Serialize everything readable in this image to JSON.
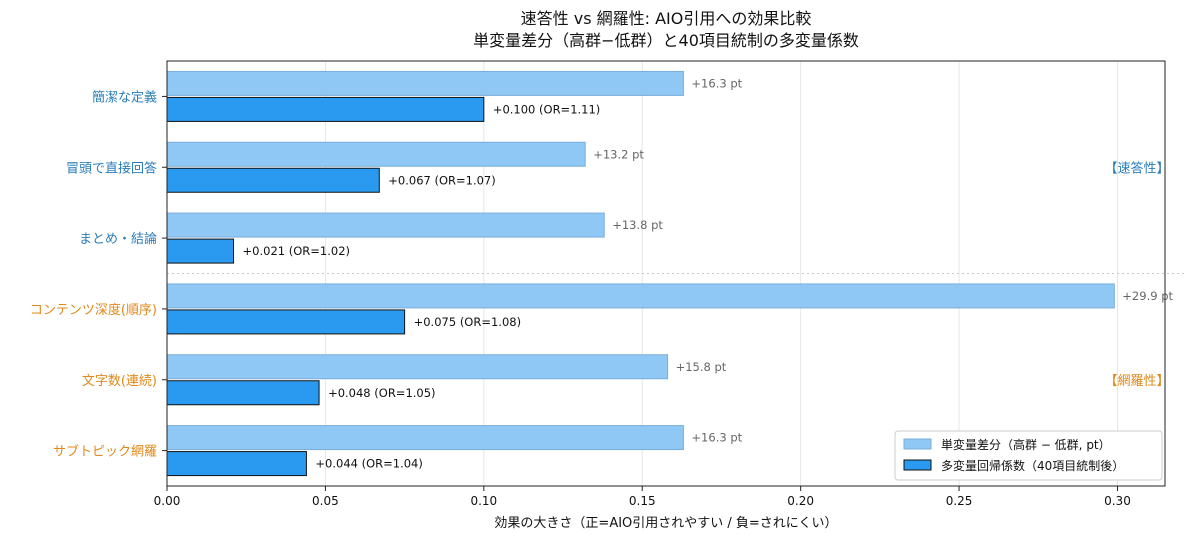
{
  "colors": {
    "speed": "#2a7db8",
    "coverage": "#e0891a",
    "univariate_fill": "#90c8f5",
    "univariate_edge": "#7aaed9",
    "multivariate_fill": "#2a9af0",
    "multivariate_edge": "#111111"
  },
  "chart_data": {
    "type": "bar",
    "orientation": "horizontal",
    "title": "速答性 vs 網羅性: AIO引用への効果比較",
    "subtitle": "単変量差分（高群−低群）と40項目統制の多変量係数",
    "xlabel": "効果の大きさ（正=AIO引用されやすい / 負=されにくい）",
    "xlim": [
      0,
      0.315
    ],
    "xticks": [
      0.0,
      0.05,
      0.1,
      0.15,
      0.2,
      0.25,
      0.3
    ],
    "xtick_labels": [
      "0.00",
      "0.05",
      "0.10",
      "0.15",
      "0.20",
      "0.25",
      "0.30"
    ],
    "grid": "vertical",
    "legend_position": "bottom-right",
    "categories": [
      {
        "label": "簡潔な定義",
        "group": "speed"
      },
      {
        "label": "冒頭で直接回答",
        "group": "speed"
      },
      {
        "label": "まとめ・結論",
        "group": "speed"
      },
      {
        "label": "コンテンツ深度(順序)",
        "group": "coverage"
      },
      {
        "label": "文字数(連続)",
        "group": "coverage"
      },
      {
        "label": "サブトピック網羅",
        "group": "coverage"
      }
    ],
    "series": [
      {
        "name": "単変量差分（高群 − 低群, pt）",
        "values": [
          0.163,
          0.132,
          0.138,
          0.299,
          0.158,
          0.163
        ],
        "labels": [
          "+16.3 pt",
          "+13.2 pt",
          "+13.8 pt",
          "+29.9 pt",
          "+15.8 pt",
          "+16.3 pt"
        ]
      },
      {
        "name": "多変量回帰係数（40項目統制後）",
        "values": [
          0.1,
          0.067,
          0.021,
          0.075,
          0.048,
          0.044
        ],
        "labels": [
          "+0.100 (OR=1.11)",
          "+0.067 (OR=1.07)",
          "+0.021 (OR=1.02)",
          "+0.075 (OR=1.08)",
          "+0.048 (OR=1.05)",
          "+0.044 (OR=1.04)"
        ]
      }
    ],
    "group_labels": [
      {
        "group": "speed",
        "text": "【速答性】"
      },
      {
        "group": "coverage",
        "text": "【網羅性】"
      }
    ]
  }
}
